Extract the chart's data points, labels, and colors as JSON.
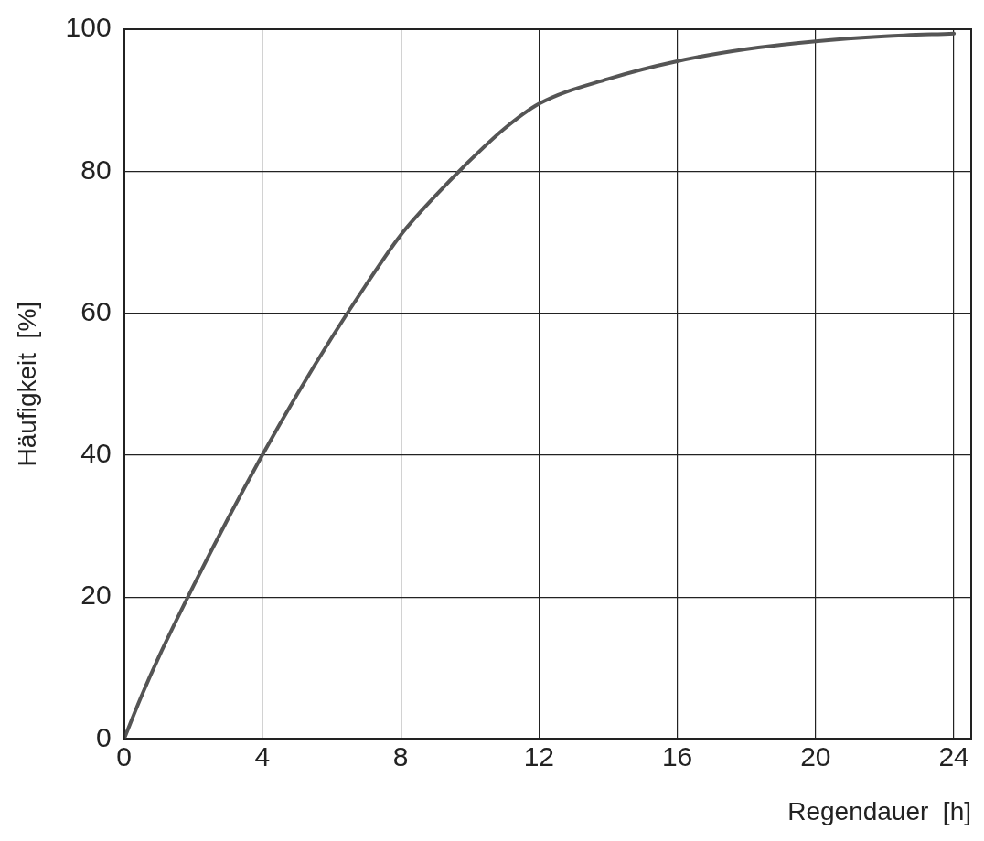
{
  "chart_data": {
    "type": "line",
    "xlabel": "Regendauer  [h]",
    "ylabel": "Häufigkeit  [%]",
    "x": [
      0,
      0.5,
      1,
      2,
      3,
      4,
      5,
      6,
      7,
      8,
      9,
      10,
      11,
      12,
      14,
      16,
      18,
      20,
      22,
      24
    ],
    "series": [
      {
        "color": "#555555",
        "values": [
          0,
          6,
          11.5,
          21.5,
          31,
          40,
          48.5,
          56.5,
          64,
          71,
          76.5,
          81.5,
          86,
          89.5,
          93,
          95.5,
          97.2,
          98.3,
          99,
          99.4
        ]
      }
    ],
    "xlim": [
      0,
      24.5
    ],
    "xticks": [
      0,
      4,
      8,
      12,
      16,
      20,
      24
    ],
    "ylim": [
      0,
      100
    ],
    "yticks": [
      0,
      20,
      40,
      60,
      80,
      100
    ],
    "grid": true,
    "marker": "none",
    "line_style": "solid"
  }
}
